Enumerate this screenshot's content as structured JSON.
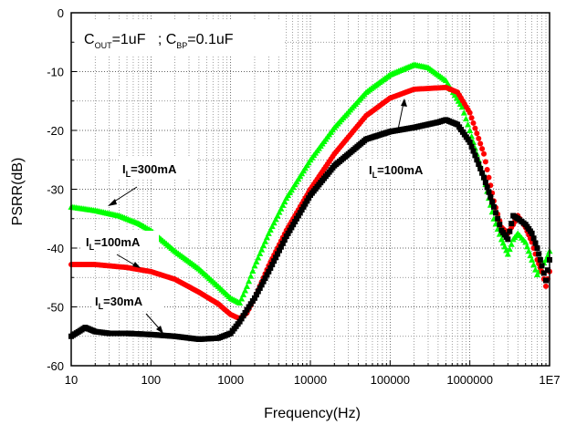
{
  "chart_data": {
    "type": "scatter",
    "title": "",
    "xlabel": "Frequency(Hz)",
    "ylabel": "PSRR(dB)",
    "xscale": "log",
    "xlim": [
      10,
      10000000
    ],
    "ylim": [
      -60,
      0
    ],
    "x_tick_labels": [
      "10",
      "100",
      "1000",
      "10000",
      "100000",
      "1000000",
      "1E7"
    ],
    "y_tick_labels": [
      "-60",
      "-50",
      "-40",
      "-30",
      "-20",
      "-10",
      "0"
    ],
    "grid": "dotted major and minor",
    "condition_box": {
      "part1_main": "C",
      "part1_sub": "OUT",
      "part1_rest": "=1uF   ; ",
      "part2_main": "C",
      "part2_sub": "BP",
      "part2_rest": "=0.1uF"
    },
    "series": [
      {
        "color": "#00ff00",
        "marker": "triangle",
        "points": [
          [
            10,
            -33
          ],
          [
            20,
            -33.6
          ],
          [
            40,
            -34.5
          ],
          [
            70,
            -35.8
          ],
          [
            100,
            -37
          ],
          [
            200,
            -40.5
          ],
          [
            400,
            -43.5
          ],
          [
            700,
            -46.5
          ],
          [
            1000,
            -48.5
          ],
          [
            1300,
            -49.3
          ],
          [
            1600,
            -46.5
          ],
          [
            2000,
            -43
          ],
          [
            3000,
            -37.5
          ],
          [
            5000,
            -31.5
          ],
          [
            10000,
            -25
          ],
          [
            20000,
            -19.5
          ],
          [
            50000,
            -13.5
          ],
          [
            100000,
            -10.5
          ],
          [
            200000,
            -8.8
          ],
          [
            300000,
            -9.3
          ],
          [
            500000,
            -11.5
          ],
          [
            800000,
            -16
          ],
          [
            1000000,
            -20
          ],
          [
            1500000,
            -28
          ],
          [
            2000000,
            -35
          ],
          [
            2500000,
            -38.5
          ],
          [
            3000000,
            -41
          ],
          [
            3500000,
            -38.5
          ],
          [
            4000000,
            -37.5
          ],
          [
            5000000,
            -39
          ],
          [
            6000000,
            -42
          ],
          [
            7000000,
            -44.5
          ],
          [
            8000000,
            -43
          ],
          [
            9000000,
            -42
          ],
          [
            10000000,
            -40.5
          ]
        ]
      },
      {
        "color": "#ff0000",
        "marker": "circle",
        "points": [
          [
            10,
            -42.8
          ],
          [
            20,
            -42.8
          ],
          [
            50,
            -43.3
          ],
          [
            100,
            -44
          ],
          [
            200,
            -45.3
          ],
          [
            400,
            -47.5
          ],
          [
            700,
            -49.5
          ],
          [
            1000,
            -51.3
          ],
          [
            1300,
            -52
          ],
          [
            1600,
            -51
          ],
          [
            2000,
            -48.5
          ],
          [
            3000,
            -43
          ],
          [
            5000,
            -37
          ],
          [
            10000,
            -30
          ],
          [
            20000,
            -24
          ],
          [
            50000,
            -17.5
          ],
          [
            100000,
            -14.5
          ],
          [
            200000,
            -13
          ],
          [
            500000,
            -12.7
          ],
          [
            700000,
            -13.5
          ],
          [
            1000000,
            -17
          ],
          [
            1500000,
            -24
          ],
          [
            2000000,
            -32
          ],
          [
            2500000,
            -36.5
          ],
          [
            3000000,
            -37.5
          ],
          [
            3500000,
            -36
          ],
          [
            4000000,
            -34.5
          ],
          [
            5000000,
            -36.5
          ],
          [
            6000000,
            -39
          ],
          [
            7000000,
            -42
          ],
          [
            8000000,
            -44
          ],
          [
            9000000,
            -46.5
          ],
          [
            10000000,
            -44
          ]
        ]
      },
      {
        "color": "#000000",
        "marker": "square",
        "points": [
          [
            10,
            -55
          ],
          [
            15,
            -53.5
          ],
          [
            20,
            -54.2
          ],
          [
            30,
            -54.5
          ],
          [
            50,
            -54.5
          ],
          [
            100,
            -54.7
          ],
          [
            200,
            -55
          ],
          [
            400,
            -55.5
          ],
          [
            700,
            -55.3
          ],
          [
            1000,
            -54.5
          ],
          [
            1300,
            -52.5
          ],
          [
            1600,
            -50.5
          ],
          [
            2000,
            -48.5
          ],
          [
            3000,
            -44
          ],
          [
            5000,
            -38
          ],
          [
            10000,
            -31
          ],
          [
            20000,
            -26
          ],
          [
            50000,
            -21.5
          ],
          [
            100000,
            -20.2
          ],
          [
            200000,
            -19.5
          ],
          [
            400000,
            -18.6
          ],
          [
            500000,
            -18.2
          ],
          [
            700000,
            -19
          ],
          [
            1000000,
            -22
          ],
          [
            1500000,
            -28
          ],
          [
            2000000,
            -33
          ],
          [
            2500000,
            -37
          ],
          [
            3000000,
            -38.5
          ],
          [
            3500000,
            -34.5
          ],
          [
            4000000,
            -35
          ],
          [
            5000000,
            -36
          ],
          [
            6000000,
            -37.5
          ],
          [
            7000000,
            -40
          ],
          [
            8000000,
            -43
          ],
          [
            9000000,
            -45.5
          ],
          [
            10000000,
            -42
          ]
        ]
      }
    ],
    "annotations": [
      {
        "text_main": "I",
        "text_sub": "L",
        "text_rest": "=300mA"
      },
      {
        "text_main": "I",
        "text_sub": "L",
        "text_rest": "=100mA"
      },
      {
        "text_main": "I",
        "text_sub": "L",
        "text_rest": "=30mA"
      },
      {
        "text_main": "I",
        "text_sub": "L",
        "text_rest": "=100mA"
      }
    ]
  }
}
